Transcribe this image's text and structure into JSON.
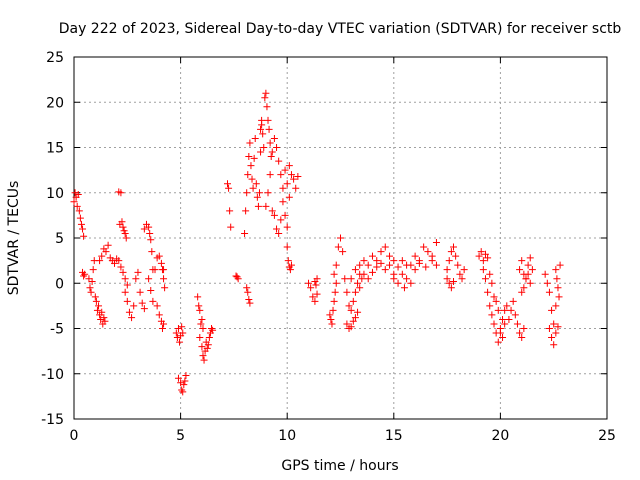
{
  "chart_data": {
    "type": "scatter",
    "title": "Day 222 of 2023, Sidereal Day-to-day VTEC variation (SDTVAR) for receiver sctb",
    "xlabel": "GPS time / hours",
    "ylabel": "SDTVAR / TECUs",
    "xlim": [
      0,
      25
    ],
    "ylim": [
      -15,
      25
    ],
    "xticks": [
      0,
      5,
      10,
      15,
      20,
      25
    ],
    "yticks": [
      -15,
      -10,
      -5,
      0,
      5,
      10,
      15,
      20,
      25
    ],
    "xtick_labels": [
      "0",
      "5",
      "10",
      "15",
      "20",
      "25"
    ],
    "ytick_labels": [
      "-15",
      "-10",
      "-5",
      "0",
      "5",
      "10",
      "15",
      "20",
      "25"
    ],
    "grid": true,
    "marker": "+",
    "color": "#ff0000",
    "segments": [
      {
        "x": [
          0.0,
          0.05,
          0.1,
          0.15,
          0.2,
          0.25,
          0.3,
          0.35,
          0.4,
          0.45
        ],
        "y": [
          9.0,
          10.0,
          9.5,
          8.5,
          9.8,
          8.0,
          7.2,
          6.5,
          6.0,
          5.2
        ]
      },
      {
        "x": [
          0.4,
          0.45,
          0.5
        ],
        "y": [
          1.2,
          0.8,
          1.0
        ]
      },
      {
        "x": [
          0.7,
          0.75,
          0.8,
          0.85,
          0.9,
          0.95,
          1.0,
          1.05,
          1.1,
          1.15,
          1.2,
          1.25,
          1.3,
          1.35,
          1.4,
          1.45
        ],
        "y": [
          0.5,
          -0.5,
          -1.0,
          0.2,
          1.5,
          2.5,
          -1.5,
          -2.0,
          -3.0,
          -2.5,
          -3.5,
          -4.0,
          -3.2,
          -4.5,
          -3.8,
          -4.2
        ]
      },
      {
        "x": [
          1.2,
          1.3,
          1.4,
          1.5,
          1.6,
          1.7,
          1.8,
          1.9,
          2.0,
          2.1,
          2.2,
          2.3,
          2.4,
          2.5
        ],
        "y": [
          2.5,
          3.0,
          3.8,
          3.5,
          4.2,
          2.8,
          2.5,
          2.2,
          2.7,
          2.5,
          1.8,
          1.2,
          0.5,
          -0.2
        ]
      },
      {
        "x": [
          2.1,
          2.2
        ],
        "y": [
          10.1,
          10.0
        ]
      },
      {
        "x": [
          2.15,
          2.25,
          2.3,
          2.35,
          2.4,
          2.45
        ],
        "y": [
          6.5,
          6.8,
          6.2,
          5.8,
          5.5,
          5.0
        ]
      },
      {
        "x": [
          2.4,
          2.5,
          2.6,
          2.7,
          2.8,
          2.9,
          3.0,
          3.1,
          3.2,
          3.3
        ],
        "y": [
          -1.0,
          -2.0,
          -3.2,
          -3.8,
          -2.5,
          0.5,
          1.2,
          -1.0,
          -2.2,
          -2.8
        ]
      },
      {
        "x": [
          3.3,
          3.4,
          3.5,
          3.55,
          3.6,
          3.65,
          3.7
        ],
        "y": [
          6.0,
          6.5,
          6.2,
          5.5,
          4.8,
          3.5,
          1.5
        ]
      },
      {
        "x": [
          3.5,
          3.6,
          3.7,
          3.8,
          3.9,
          4.0,
          4.1,
          4.2
        ],
        "y": [
          0.5,
          -0.8,
          -2.0,
          1.5,
          2.8,
          3.0,
          2.2,
          1.5
        ]
      },
      {
        "x": [
          3.9,
          4.0,
          4.1,
          4.15,
          4.2
        ],
        "y": [
          -2.5,
          -3.5,
          -4.2,
          -5.0,
          -4.5
        ]
      },
      {
        "x": [
          4.15,
          4.2,
          4.25
        ],
        "y": [
          1.5,
          0.5,
          -0.5
        ]
      },
      {
        "x": [
          4.8,
          4.85,
          4.9,
          4.95,
          5.0,
          5.05,
          5.1
        ],
        "y": [
          -5.5,
          -6.0,
          -5.0,
          -6.5,
          -5.8,
          -4.8,
          -5.5
        ]
      },
      {
        "x": [
          4.9,
          5.0,
          5.05,
          5.1,
          5.15,
          5.2,
          5.25
        ],
        "y": [
          -10.5,
          -11.0,
          -11.8,
          -12.0,
          -11.2,
          -10.8,
          -10.2
        ]
      },
      {
        "x": [
          5.8,
          5.85,
          5.9,
          5.95,
          6.0,
          6.05
        ],
        "y": [
          -1.5,
          -2.5,
          -3.0,
          -4.5,
          -4.0,
          -5.0
        ]
      },
      {
        "x": [
          5.9,
          6.0,
          6.05,
          6.1,
          6.15,
          6.2,
          6.25,
          6.3,
          6.35,
          6.4,
          6.45,
          6.5
        ],
        "y": [
          -6.0,
          -7.0,
          -8.0,
          -8.5,
          -7.5,
          -6.5,
          -7.2,
          -6.8,
          -6.0,
          -5.5,
          -5.0,
          -5.2
        ]
      },
      {
        "x": [
          7.2,
          7.25,
          7.3,
          7.35
        ],
        "y": [
          11.0,
          10.5,
          8.0,
          6.2
        ]
      },
      {
        "x": [
          7.6,
          7.65,
          7.7
        ],
        "y": [
          0.8,
          0.7,
          0.5
        ]
      },
      {
        "x": [
          8.1,
          8.15,
          8.2,
          8.25
        ],
        "y": [
          -0.5,
          -1.0,
          -1.8,
          -2.2
        ]
      },
      {
        "x": [
          8.0,
          8.05,
          8.1,
          8.15,
          8.2,
          8.25,
          8.3,
          8.35,
          8.4,
          8.45,
          8.5,
          8.55,
          8.6,
          8.65,
          8.7,
          8.75,
          8.8
        ],
        "y": [
          5.5,
          8.0,
          10.0,
          12.0,
          14.0,
          15.5,
          13.0,
          11.5,
          10.5,
          13.8,
          16.0,
          11.0,
          9.5,
          8.5,
          10.0,
          14.5,
          17.5
        ]
      },
      {
        "x": [
          8.75,
          8.8,
          8.85,
          8.9,
          8.95,
          9.0,
          9.05,
          9.1,
          9.15,
          9.2,
          9.25
        ],
        "y": [
          17.0,
          18.0,
          16.5,
          15.0,
          20.5,
          21.0,
          19.5,
          18.0,
          17.0,
          15.5,
          14.0
        ]
      },
      {
        "x": [
          9.0,
          9.1,
          9.2,
          9.3,
          9.4,
          9.5,
          9.6,
          9.7,
          9.8,
          9.9,
          10.0
        ],
        "y": [
          8.5,
          10.0,
          12.0,
          14.5,
          16.0,
          15.0,
          13.5,
          12.0,
          9.0,
          7.5,
          6.2
        ]
      },
      {
        "x": [
          9.3,
          9.4,
          9.5,
          9.6,
          9.7,
          9.8,
          9.9,
          10.0,
          10.1
        ],
        "y": [
          8.0,
          7.5,
          6.0,
          5.5,
          7.0,
          10.5,
          12.5,
          11.0,
          9.5
        ]
      },
      {
        "x": [
          10.1,
          10.2,
          10.3,
          10.4,
          10.5
        ],
        "y": [
          13.0,
          12.0,
          11.5,
          10.5,
          11.8
        ]
      },
      {
        "x": [
          10.0,
          10.05,
          10.1,
          10.15,
          10.2
        ],
        "y": [
          4.0,
          2.5,
          1.8,
          1.5,
          2.0
        ]
      },
      {
        "x": [
          11.0,
          11.1,
          11.2,
          11.3,
          11.4
        ],
        "y": [
          0.0,
          -0.5,
          -1.5,
          -2.0,
          -1.2
        ]
      },
      {
        "x": [
          11.3,
          11.35,
          11.4
        ],
        "y": [
          0.2,
          -0.2,
          0.5
        ]
      },
      {
        "x": [
          12.0,
          12.05,
          12.1,
          12.15,
          12.2,
          12.25,
          12.3
        ],
        "y": [
          -3.5,
          -4.0,
          -4.5,
          -3.0,
          -2.0,
          -1.0,
          0.0
        ]
      },
      {
        "x": [
          12.2,
          12.3,
          12.4,
          12.5,
          12.6,
          12.7,
          12.8,
          12.9,
          13.0,
          13.1,
          13.2,
          13.3,
          13.4,
          13.5
        ],
        "y": [
          1.0,
          2.0,
          4.0,
          5.0,
          3.5,
          0.5,
          -1.0,
          -2.5,
          -3.0,
          -2.0,
          -1.0,
          0.0,
          1.0,
          0.5
        ]
      },
      {
        "x": [
          12.8,
          12.9,
          13.0,
          13.1,
          13.2,
          13.3
        ],
        "y": [
          -4.5,
          -5.0,
          -4.8,
          -4.2,
          -3.8,
          -3.2
        ]
      },
      {
        "x": [
          13.0,
          13.2,
          13.4,
          13.6,
          13.8,
          14.0,
          14.2,
          14.4,
          14.6,
          14.8,
          15.0
        ],
        "y": [
          0.5,
          1.5,
          2.0,
          2.5,
          2.0,
          3.0,
          2.5,
          3.5,
          4.0,
          3.0,
          2.5
        ]
      },
      {
        "x": [
          13.4,
          13.6,
          13.8,
          14.0,
          14.2,
          14.4,
          14.6,
          14.8,
          15.0,
          15.2,
          15.4,
          15.6
        ],
        "y": [
          -0.5,
          1.0,
          0.5,
          1.2,
          1.8,
          2.2,
          1.5,
          2.0,
          1.0,
          1.8,
          2.5,
          2.0
        ]
      },
      {
        "x": [
          15.0,
          15.2,
          15.4,
          15.6,
          15.8,
          16.0,
          16.2,
          16.4,
          16.6,
          16.8,
          17.0
        ],
        "y": [
          0.5,
          0.0,
          1.0,
          0.5,
          2.0,
          3.0,
          2.5,
          4.0,
          3.5,
          2.5,
          4.5
        ]
      },
      {
        "x": [
          15.5,
          15.8,
          16.0,
          16.2,
          16.5,
          16.8,
          17.0
        ],
        "y": [
          -0.5,
          0.0,
          1.5,
          2.2,
          1.8,
          3.0,
          2.0
        ]
      },
      {
        "x": [
          17.5,
          17.6,
          17.7,
          17.8,
          17.9,
          18.0,
          18.1,
          18.2,
          18.3
        ],
        "y": [
          1.5,
          2.5,
          3.5,
          4.0,
          3.0,
          2.0,
          1.0,
          0.5,
          1.5
        ]
      },
      {
        "x": [
          17.5,
          17.6,
          17.7,
          17.8
        ],
        "y": [
          0.5,
          0.0,
          -0.5,
          0.2
        ]
      },
      {
        "x": [
          19.0,
          19.1,
          19.2,
          19.3,
          19.4
        ],
        "y": [
          3.0,
          3.5,
          2.5,
          3.2,
          2.8
        ]
      },
      {
        "x": [
          19.2,
          19.3,
          19.4,
          19.5,
          19.6,
          19.7,
          19.8,
          19.9,
          20.0,
          20.1
        ],
        "y": [
          1.5,
          0.5,
          -1.0,
          -2.5,
          -3.5,
          -4.5,
          -5.5,
          -6.5,
          -5.0,
          -4.0
        ]
      },
      {
        "x": [
          19.5,
          19.6,
          19.7,
          19.8,
          19.9,
          20.0,
          20.1,
          20.2
        ],
        "y": [
          1.0,
          0.0,
          -1.5,
          -2.0,
          -3.0,
          -5.5,
          -6.0,
          -4.5
        ]
      },
      {
        "x": [
          20.2,
          20.3,
          20.4,
          20.5,
          20.6,
          20.7,
          20.8,
          20.9,
          21.0,
          21.1
        ],
        "y": [
          -3.0,
          -2.5,
          -4.0,
          -3.0,
          -2.0,
          -3.5,
          -4.5,
          -5.5,
          -6.0,
          -5.0
        ]
      },
      {
        "x": [
          20.9,
          21.0,
          21.1,
          21.2,
          21.3,
          21.4,
          21.5
        ],
        "y": [
          1.5,
          2.5,
          1.0,
          0.5,
          2.0,
          2.8,
          1.5
        ]
      },
      {
        "x": [
          21.0,
          21.1,
          21.2,
          21.3,
          21.4
        ],
        "y": [
          -1.0,
          -0.5,
          0.5,
          1.0,
          0.0
        ]
      },
      {
        "x": [
          22.1,
          22.2,
          22.3,
          22.4,
          22.5,
          22.6
        ],
        "y": [
          1.0,
          0.0,
          -1.0,
          -3.0,
          -4.5,
          -2.5
        ]
      },
      {
        "x": [
          22.3,
          22.4,
          22.5,
          22.6,
          22.7
        ],
        "y": [
          -5.0,
          -6.0,
          -6.8,
          -5.5,
          -4.8
        ]
      },
      {
        "x": [
          22.6,
          22.65,
          22.7,
          22.75,
          22.8
        ],
        "y": [
          1.5,
          0.5,
          -0.5,
          -1.5,
          2.0
        ]
      }
    ]
  }
}
